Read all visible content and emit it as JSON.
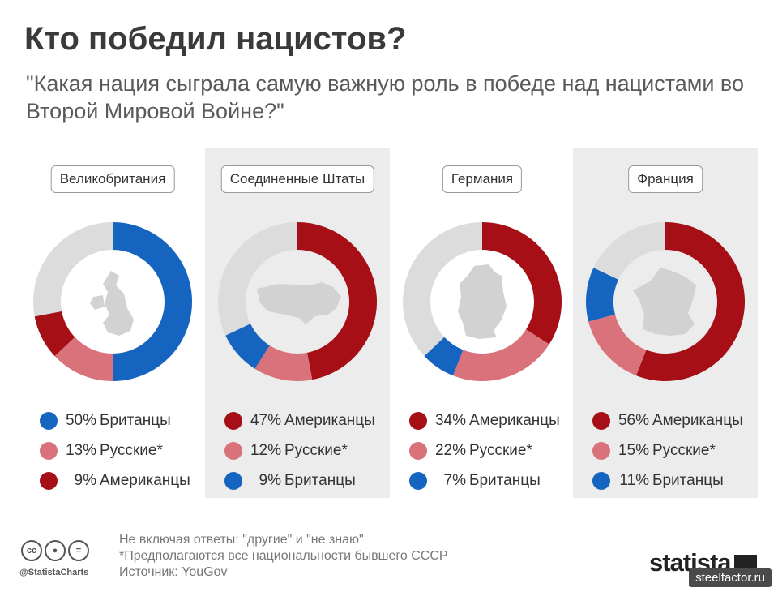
{
  "title": "Кто победил нацистов?",
  "subtitle": "\"Какая нация сыграла самую важную роль в победе над нацистами во Второй Мировой Войне?\"",
  "colors": {
    "blue": "#1565c0",
    "dark_red": "#a50f15",
    "light_red": "#d9727a",
    "gray": "#dcdcdc",
    "map": "#d2d2d2"
  },
  "chart_data": [
    {
      "type": "pie",
      "country": "Великобритания",
      "series": [
        {
          "pct_label": "50%",
          "group": "Британцы",
          "value": 50,
          "color": "blue"
        },
        {
          "pct_label": "13%",
          "group": "Русские*",
          "value": 13,
          "color": "light_red"
        },
        {
          "pct_label": "9%",
          "group": "Американцы",
          "value": 9,
          "color": "dark_red"
        }
      ]
    },
    {
      "type": "pie",
      "country": "Соединенные Штаты",
      "series": [
        {
          "pct_label": "47%",
          "group": "Американцы",
          "value": 47,
          "color": "dark_red"
        },
        {
          "pct_label": "12%",
          "group": "Русские*",
          "value": 12,
          "color": "light_red"
        },
        {
          "pct_label": "9%",
          "group": "Британцы",
          "value": 9,
          "color": "blue"
        }
      ]
    },
    {
      "type": "pie",
      "country": "Германия",
      "series": [
        {
          "pct_label": "34%",
          "group": "Американцы",
          "value": 34,
          "color": "dark_red"
        },
        {
          "pct_label": "22%",
          "group": "Русские*",
          "value": 22,
          "color": "light_red"
        },
        {
          "pct_label": "7%",
          "group": "Британцы",
          "value": 7,
          "color": "blue"
        }
      ]
    },
    {
      "type": "pie",
      "country": "Франция",
      "series": [
        {
          "pct_label": "56%",
          "group": "Американцы",
          "value": 56,
          "color": "dark_red"
        },
        {
          "pct_label": "15%",
          "group": "Русские*",
          "value": 15,
          "color": "light_red"
        },
        {
          "pct_label": "11%",
          "group": "Британцы",
          "value": 11,
          "color": "blue"
        }
      ]
    }
  ],
  "footer": {
    "notes": [
      "Не включая ответы: \"другие\" и \"не знаю\"",
      "*Предполагаются все национальности бывшего СССР",
      "Источник: YouGov"
    ],
    "handle": "@StatistaCharts",
    "cc_icons": [
      "cc",
      "by",
      "nd"
    ],
    "logo": "statista",
    "watermark": "steelfactor.ru"
  }
}
